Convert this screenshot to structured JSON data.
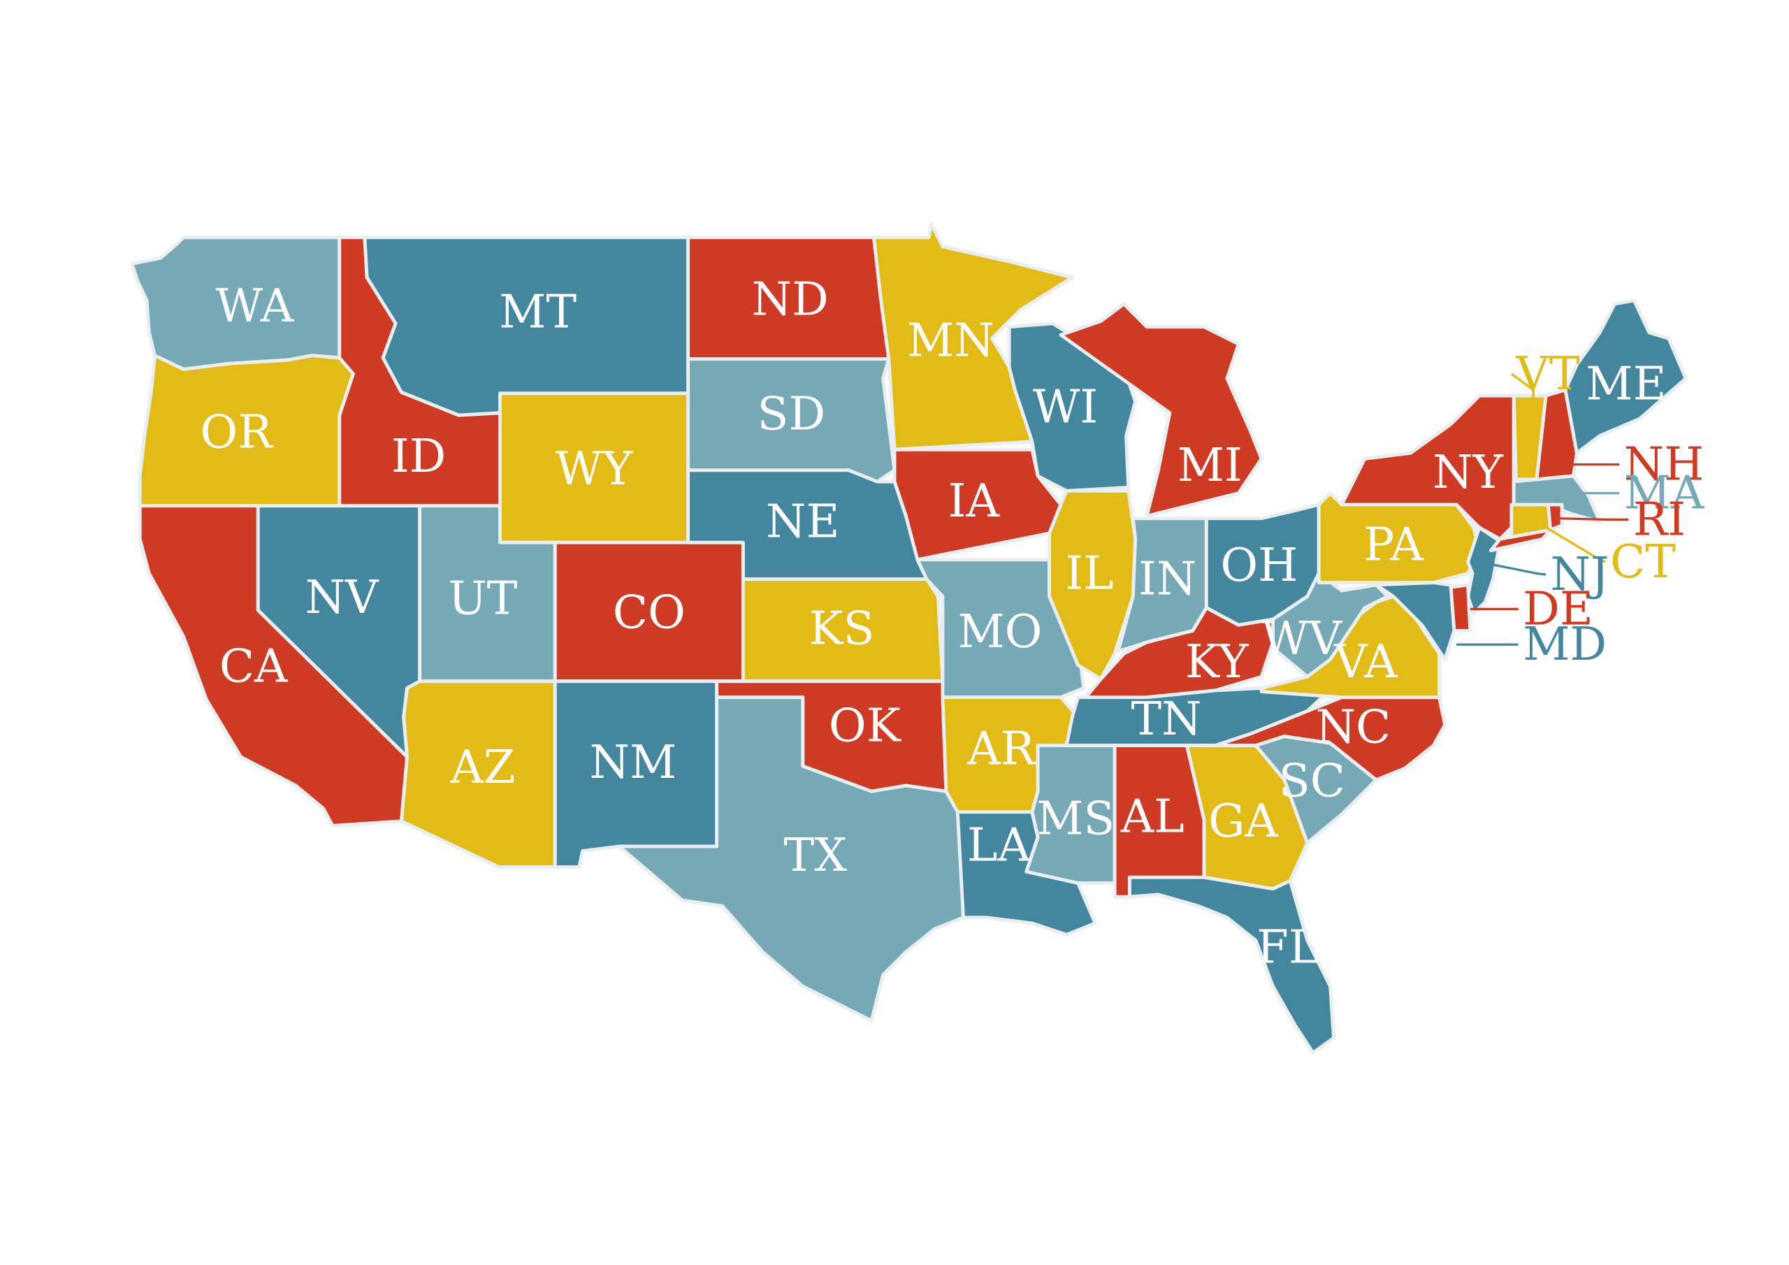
{
  "colors": {
    "red": "#cf3a24",
    "yellow": "#e2bb17",
    "teal": "#45869f",
    "light": "#76a8b6",
    "background": "#ffffff"
  },
  "states": [
    {
      "abbr": "WA",
      "color": "light"
    },
    {
      "abbr": "OR",
      "color": "yellow"
    },
    {
      "abbr": "CA",
      "color": "red"
    },
    {
      "abbr": "ID",
      "color": "red"
    },
    {
      "abbr": "NV",
      "color": "teal"
    },
    {
      "abbr": "MT",
      "color": "teal"
    },
    {
      "abbr": "WY",
      "color": "yellow"
    },
    {
      "abbr": "UT",
      "color": "light"
    },
    {
      "abbr": "AZ",
      "color": "yellow"
    },
    {
      "abbr": "CO",
      "color": "red"
    },
    {
      "abbr": "NM",
      "color": "teal"
    },
    {
      "abbr": "ND",
      "color": "red"
    },
    {
      "abbr": "SD",
      "color": "light"
    },
    {
      "abbr": "NE",
      "color": "teal"
    },
    {
      "abbr": "KS",
      "color": "yellow"
    },
    {
      "abbr": "OK",
      "color": "red"
    },
    {
      "abbr": "TX",
      "color": "light"
    },
    {
      "abbr": "MN",
      "color": "yellow"
    },
    {
      "abbr": "IA",
      "color": "red"
    },
    {
      "abbr": "MO",
      "color": "light"
    },
    {
      "abbr": "AR",
      "color": "yellow"
    },
    {
      "abbr": "LA",
      "color": "teal"
    },
    {
      "abbr": "WI",
      "color": "teal"
    },
    {
      "abbr": "IL",
      "color": "yellow"
    },
    {
      "abbr": "MS",
      "color": "light"
    },
    {
      "abbr": "MI",
      "color": "red"
    },
    {
      "abbr": "IN",
      "color": "light"
    },
    {
      "abbr": "OH",
      "color": "teal"
    },
    {
      "abbr": "KY",
      "color": "red"
    },
    {
      "abbr": "TN",
      "color": "teal"
    },
    {
      "abbr": "AL",
      "color": "red"
    },
    {
      "abbr": "GA",
      "color": "yellow"
    },
    {
      "abbr": "FL",
      "color": "teal"
    },
    {
      "abbr": "SC",
      "color": "light"
    },
    {
      "abbr": "NC",
      "color": "red"
    },
    {
      "abbr": "VA",
      "color": "yellow"
    },
    {
      "abbr": "WV",
      "color": "light"
    },
    {
      "abbr": "PA",
      "color": "yellow"
    },
    {
      "abbr": "NY",
      "color": "red"
    },
    {
      "abbr": "VT",
      "color": "yellow"
    },
    {
      "abbr": "NH",
      "color": "red"
    },
    {
      "abbr": "ME",
      "color": "teal"
    },
    {
      "abbr": "MA",
      "color": "light"
    },
    {
      "abbr": "RI",
      "color": "red"
    },
    {
      "abbr": "CT",
      "color": "yellow"
    },
    {
      "abbr": "NJ",
      "color": "teal"
    },
    {
      "abbr": "DE",
      "color": "red"
    },
    {
      "abbr": "MD",
      "color": "teal"
    }
  ]
}
